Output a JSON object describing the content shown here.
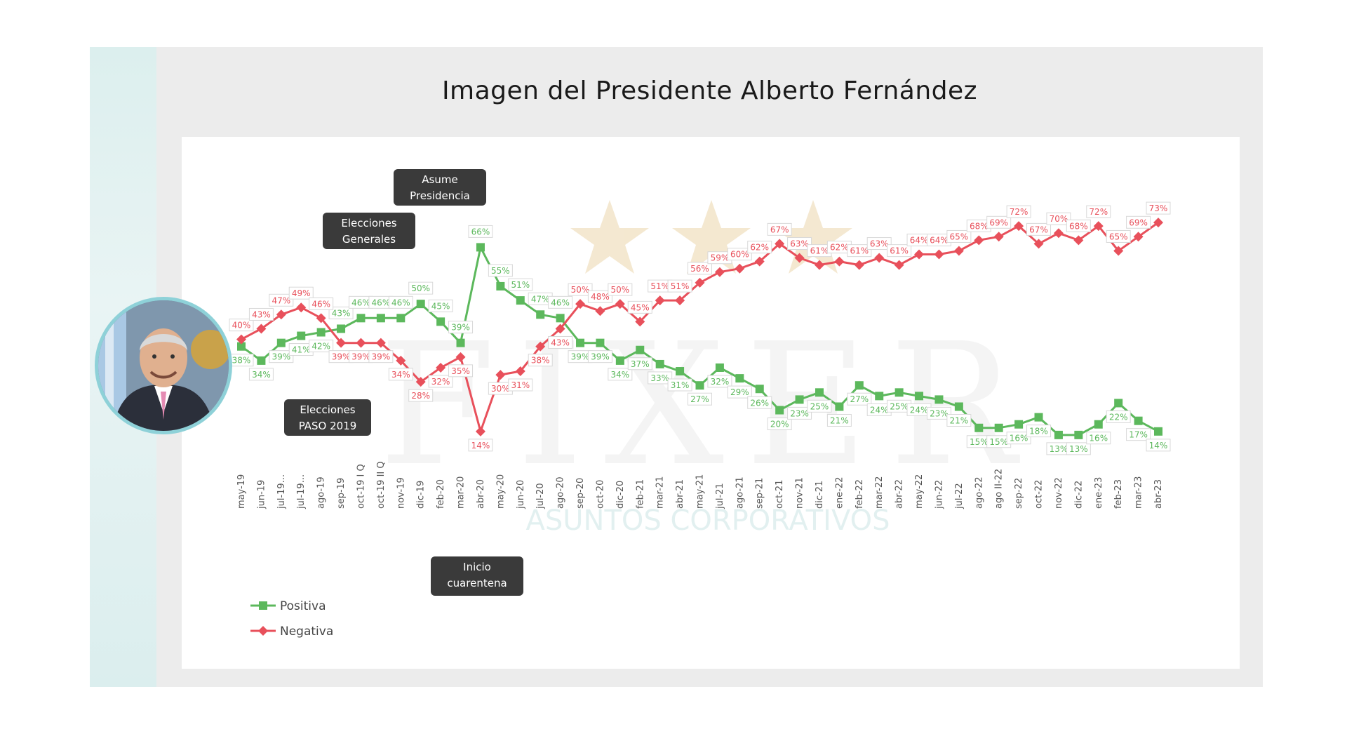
{
  "slide": {
    "title": "Imagen del Presidente Alberto Fernández",
    "accent_color": "#dcefee",
    "background": "#ececec"
  },
  "callouts": {
    "asume": "Asume Presidencia",
    "generales": "Elecciones Generales",
    "paso": "Elecciones PASO 2019",
    "cuarentena": "Inicio cuarentena"
  },
  "watermark": {
    "logo": "FIXER",
    "subtitle": "ASUNTOS CORPORATIVOS"
  },
  "photo": {
    "alt": "Retrato de Alberto Fernández"
  },
  "chart_data": {
    "type": "line",
    "title": "Imagen del Presidente Alberto Fernández",
    "categories": [
      "may-19",
      "jun-19",
      "jul-19...",
      "jul-19...",
      "ago-19",
      "sep-19",
      "oct-19 I Q",
      "oct-19 II Q",
      "nov-19",
      "dic-19",
      "feb-20",
      "mar-20",
      "abr-20",
      "may-20",
      "jun-20",
      "jul-20",
      "ago-20",
      "sep-20",
      "oct-20",
      "dic-20",
      "feb-21",
      "mar-21",
      "abr-21",
      "may-21",
      "jul-21",
      "ago-21",
      "sep-21",
      "oct-21",
      "nov-21",
      "dic-21",
      "ene-22",
      "feb-22",
      "mar-22",
      "abr-22",
      "may-22",
      "jun-22",
      "jul-22",
      "ago-22",
      "ago II-22",
      "sep-22",
      "oct-22",
      "nov-22",
      "dic-22",
      "ene-23",
      "feb-23",
      "mar-23",
      "abr-23"
    ],
    "series": [
      {
        "name": "Positiva",
        "color": "#5cb85c",
        "marker": "square",
        "values": [
          38,
          34,
          39,
          41,
          42,
          43,
          46,
          46,
          46,
          50,
          45,
          39,
          66,
          55,
          51,
          47,
          46,
          39,
          39,
          34,
          37,
          33,
          31,
          27,
          32,
          29,
          26,
          20,
          23,
          25,
          21,
          27,
          24,
          25,
          24,
          23,
          21,
          15,
          15,
          16,
          18,
          13,
          13,
          16,
          22,
          17,
          14
        ]
      },
      {
        "name": "Negativa",
        "color": "#e8505b",
        "marker": "diamond",
        "values": [
          40,
          43,
          47,
          49,
          46,
          39,
          39,
          39,
          34,
          28,
          32,
          35,
          14,
          30,
          31,
          38,
          43,
          50,
          48,
          50,
          45,
          51,
          51,
          56,
          59,
          60,
          62,
          67,
          63,
          61,
          62,
          61,
          63,
          61,
          64,
          64,
          65,
          68,
          69,
          72,
          67,
          70,
          68,
          72,
          65,
          69,
          73
        ]
      }
    ],
    "positive_labels": [
      "38%",
      "34%",
      "39%",
      "41%",
      "42%",
      "43%",
      "46%",
      "46%",
      "46%",
      "50%",
      "45%",
      "39%",
      "66%",
      "55%",
      "51%",
      "47%",
      "46%",
      "39%",
      "39%",
      "34%",
      "37%",
      "33%",
      "31%",
      "27%",
      "32%",
      "29%",
      "26%",
      "20%",
      "23%",
      "25%",
      "21%",
      "27%",
      "24%",
      "25%",
      "24%",
      "23%",
      "21%",
      "15%",
      "15%",
      "16%",
      "18%",
      "13%",
      "13%",
      "16%",
      "22%",
      "17%",
      "14%"
    ],
    "negative_labels": [
      "40%",
      "43%",
      "47%",
      "49%",
      "46%",
      "39%",
      "39%",
      "39%",
      "34%",
      "28%",
      "32%",
      "35%",
      "14%",
      "30%",
      "31%",
      "38%",
      "43%",
      "50%",
      "48%",
      "50%",
      "45%",
      "51%",
      "51%",
      "56%",
      "59%",
      "60%",
      "62%",
      "67%",
      "63%",
      "61%",
      "62%",
      "61%",
      "63%",
      "61%",
      "64%",
      "64%",
      "65%",
      "68%",
      "69%",
      "72%",
      "67%",
      "70%",
      "68%",
      "72%",
      "65%",
      "69%",
      "73%"
    ],
    "xlabel": "",
    "ylabel": "",
    "ylim": [
      10,
      75
    ],
    "grid": false,
    "legend": {
      "placement": "bottom-left",
      "entries": [
        "Positiva",
        "Negativa"
      ]
    }
  }
}
